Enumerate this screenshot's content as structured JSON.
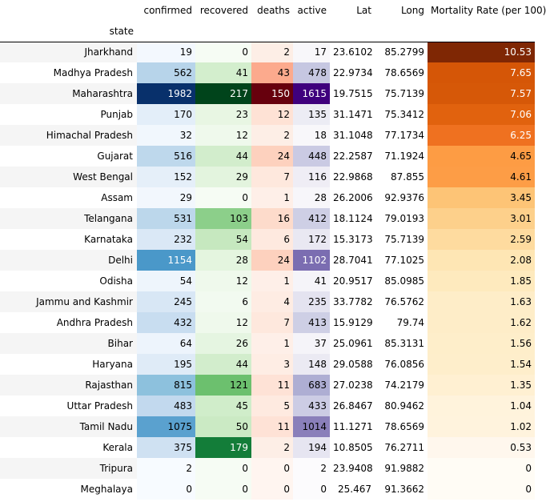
{
  "table": {
    "columns": [
      "confirmed",
      "recovered",
      "deaths",
      "active",
      "Lat",
      "Long",
      "Mortality Rate (per 100)"
    ],
    "index_name": "state",
    "rows": [
      {
        "state": "Jharkhand",
        "confirmed": "19",
        "recovered": "0",
        "deaths": "2",
        "active": "17",
        "lat": "23.6102",
        "long": "85.2799",
        "mortality": "10.53",
        "bg": [
          "#f3f8fe",
          "#f6fcf4",
          "#fdeee6",
          "#f8f7fa",
          "#ffffff",
          "#ffffff",
          "#7f2704"
        ],
        "fg": [
          "#000000",
          "#000000",
          "#000000",
          "#000000",
          "#000000",
          "#000000",
          "#ffffff"
        ]
      },
      {
        "state": "Madhya Pradesh",
        "confirmed": "562",
        "recovered": "41",
        "deaths": "43",
        "active": "478",
        "lat": "22.9734",
        "long": "78.6569",
        "mortality": "7.65",
        "bg": [
          "#b7d4ea",
          "#d3eecd",
          "#fcaa8d",
          "#c6c7e1",
          "#ffffff",
          "#ffffff",
          "#d55607"
        ],
        "fg": [
          "#000000",
          "#000000",
          "#000000",
          "#000000",
          "#000000",
          "#000000",
          "#ffffff"
        ]
      },
      {
        "state": "Maharashtra",
        "confirmed": "1982",
        "recovered": "217",
        "deaths": "150",
        "active": "1615",
        "lat": "19.7515",
        "long": "75.7139",
        "mortality": "7.57",
        "bg": [
          "#08306b",
          "#00441b",
          "#67000d",
          "#3f007d",
          "#ffffff",
          "#ffffff",
          "#d65808"
        ],
        "fg": [
          "#ffffff",
          "#ffffff",
          "#ffffff",
          "#ffffff",
          "#000000",
          "#000000",
          "#ffffff"
        ]
      },
      {
        "state": "Punjab",
        "confirmed": "170",
        "recovered": "23",
        "deaths": "12",
        "active": "135",
        "lat": "31.1471",
        "long": "75.3412",
        "mortality": "7.06",
        "bg": [
          "#e3eef9",
          "#e8f6e3",
          "#fee2d5",
          "#ececf4",
          "#ffffff",
          "#ffffff",
          "#e1620e"
        ],
        "fg": [
          "#000000",
          "#000000",
          "#000000",
          "#000000",
          "#000000",
          "#000000",
          "#ffffff"
        ]
      },
      {
        "state": "Himachal Pradesh",
        "confirmed": "32",
        "recovered": "12",
        "deaths": "2",
        "active": "18",
        "lat": "31.1048",
        "long": "77.1734",
        "mortality": "6.25",
        "bg": [
          "#f1f7fd",
          "#eff9ec",
          "#fdeee6",
          "#f8f7fa",
          "#ffffff",
          "#ffffff",
          "#ef7120"
        ],
        "fg": [
          "#000000",
          "#000000",
          "#000000",
          "#000000",
          "#000000",
          "#000000",
          "#ffffff"
        ]
      },
      {
        "state": "Gujarat",
        "confirmed": "516",
        "recovered": "44",
        "deaths": "24",
        "active": "448",
        "lat": "22.2587",
        "long": "71.1924",
        "mortality": "4.65",
        "bg": [
          "#bed8ec",
          "#d2edcc",
          "#fdd1be",
          "#cacae3",
          "#ffffff",
          "#ffffff",
          "#fd9c44"
        ],
        "fg": [
          "#000000",
          "#000000",
          "#000000",
          "#000000",
          "#000000",
          "#000000",
          "#000000"
        ]
      },
      {
        "state": "West Bengal",
        "confirmed": "152",
        "recovered": "29",
        "deaths": "7",
        "active": "116",
        "lat": "22.9868",
        "long": "87.855",
        "mortality": "4.61",
        "bg": [
          "#e5eff9",
          "#e3f4de",
          "#fee8dd",
          "#efedf5",
          "#ffffff",
          "#ffffff",
          "#fd9d46"
        ],
        "fg": [
          "#000000",
          "#000000",
          "#000000",
          "#000000",
          "#000000",
          "#000000",
          "#000000"
        ]
      },
      {
        "state": "Assam",
        "confirmed": "29",
        "recovered": "0",
        "deaths": "1",
        "active": "28",
        "lat": "26.2006",
        "long": "92.9376",
        "mortality": "3.45",
        "bg": [
          "#f2f7fd",
          "#f6fcf4",
          "#feefe8",
          "#f7f6fa",
          "#ffffff",
          "#ffffff",
          "#fdc476"
        ],
        "fg": [
          "#000000",
          "#000000",
          "#000000",
          "#000000",
          "#000000",
          "#000000",
          "#000000"
        ]
      },
      {
        "state": "Telangana",
        "confirmed": "531",
        "recovered": "103",
        "deaths": "16",
        "active": "412",
        "lat": "18.1124",
        "long": "79.0193",
        "mortality": "3.01",
        "bg": [
          "#bcd7eb",
          "#8ccf8a",
          "#fddbcb",
          "#cecfe5",
          "#ffffff",
          "#ffffff",
          "#fdd08b"
        ],
        "fg": [
          "#000000",
          "#000000",
          "#000000",
          "#000000",
          "#000000",
          "#000000",
          "#000000"
        ]
      },
      {
        "state": "Karnataka",
        "confirmed": "232",
        "recovered": "54",
        "deaths": "6",
        "active": "172",
        "lat": "15.3173",
        "long": "75.7139",
        "mortality": "2.59",
        "bg": [
          "#dae8f6",
          "#c6e8bf",
          "#fee9df",
          "#e9e8f2",
          "#ffffff",
          "#ffffff",
          "#fedb9f"
        ],
        "fg": [
          "#000000",
          "#000000",
          "#000000",
          "#000000",
          "#000000",
          "#000000",
          "#000000"
        ]
      },
      {
        "state": "Delhi",
        "confirmed": "1154",
        "recovered": "28",
        "deaths": "24",
        "active": "1102",
        "lat": "28.7041",
        "long": "77.1025",
        "mortality": "2.08",
        "bg": [
          "#4a98c9",
          "#e4f5df",
          "#fdd1be",
          "#7b6db1",
          "#ffffff",
          "#ffffff",
          "#fee6b4"
        ],
        "fg": [
          "#ffffff",
          "#000000",
          "#000000",
          "#ffffff",
          "#000000",
          "#000000",
          "#000000"
        ]
      },
      {
        "state": "Odisha",
        "confirmed": "54",
        "recovered": "12",
        "deaths": "1",
        "active": "41",
        "lat": "20.9517",
        "long": "85.0985",
        "mortality": "1.85",
        "bg": [
          "#eef5fc",
          "#eff9ec",
          "#feefe8",
          "#f5f4f9",
          "#ffffff",
          "#ffffff",
          "#feeabe"
        ],
        "fg": [
          "#000000",
          "#000000",
          "#000000",
          "#000000",
          "#000000",
          "#000000",
          "#000000"
        ]
      },
      {
        "state": "Jammu and Kashmir",
        "confirmed": "245",
        "recovered": "6",
        "deaths": "4",
        "active": "235",
        "lat": "33.7782",
        "long": "76.5762",
        "mortality": "1.63",
        "bg": [
          "#d8e7f5",
          "#f2faf0",
          "#feece3",
          "#e4e3f0",
          "#ffffff",
          "#ffffff",
          "#feedc8"
        ],
        "fg": [
          "#000000",
          "#000000",
          "#000000",
          "#000000",
          "#000000",
          "#000000",
          "#000000"
        ]
      },
      {
        "state": "Andhra Pradesh",
        "confirmed": "432",
        "recovered": "12",
        "deaths": "7",
        "active": "413",
        "lat": "15.9129",
        "long": "79.74",
        "mortality": "1.62",
        "bg": [
          "#c8ddf0",
          "#eff9ec",
          "#fee8dd",
          "#cecfe5",
          "#ffffff",
          "#ffffff",
          "#feedc8"
        ],
        "fg": [
          "#000000",
          "#000000",
          "#000000",
          "#000000",
          "#000000",
          "#000000",
          "#000000"
        ]
      },
      {
        "state": "Bihar",
        "confirmed": "64",
        "recovered": "26",
        "deaths": "1",
        "active": "37",
        "lat": "25.0961",
        "long": "85.3131",
        "mortality": "1.56",
        "bg": [
          "#edf4fc",
          "#e5f5e1",
          "#feefe8",
          "#f5f4f9",
          "#ffffff",
          "#ffffff",
          "#feeeca"
        ],
        "fg": [
          "#000000",
          "#000000",
          "#000000",
          "#000000",
          "#000000",
          "#000000",
          "#000000"
        ]
      },
      {
        "state": "Haryana",
        "confirmed": "195",
        "recovered": "44",
        "deaths": "3",
        "active": "148",
        "lat": "29.0588",
        "long": "76.0856",
        "mortality": "1.54",
        "bg": [
          "#dfebf7",
          "#d2edcc",
          "#feede4",
          "#ebeaf3",
          "#ffffff",
          "#ffffff",
          "#feeecb"
        ],
        "fg": [
          "#000000",
          "#000000",
          "#000000",
          "#000000",
          "#000000",
          "#000000",
          "#000000"
        ]
      },
      {
        "state": "Rajasthan",
        "confirmed": "815",
        "recovered": "121",
        "deaths": "11",
        "active": "683",
        "lat": "27.0238",
        "long": "74.2179",
        "mortality": "1.35",
        "bg": [
          "#8dc1dd",
          "#6cc06e",
          "#fee2d6",
          "#aeaed3",
          "#ffffff",
          "#ffffff",
          "#fff0d2"
        ],
        "fg": [
          "#000000",
          "#000000",
          "#000000",
          "#000000",
          "#000000",
          "#000000",
          "#000000"
        ]
      },
      {
        "state": "Uttar Pradesh",
        "confirmed": "483",
        "recovered": "45",
        "deaths": "5",
        "active": "433",
        "lat": "26.8467",
        "long": "80.9462",
        "mortality": "1.04",
        "bg": [
          "#c2d9ee",
          "#d0edca",
          "#feeae0",
          "#cccce4",
          "#ffffff",
          "#ffffff",
          "#fff3dc"
        ],
        "fg": [
          "#000000",
          "#000000",
          "#000000",
          "#000000",
          "#000000",
          "#000000",
          "#000000"
        ]
      },
      {
        "state": "Tamil Nadu",
        "confirmed": "1075",
        "recovered": "50",
        "deaths": "11",
        "active": "1014",
        "lat": "11.1271",
        "long": "78.6569",
        "mortality": "1.02",
        "bg": [
          "#5aa1cf",
          "#cbeac4",
          "#fee2d6",
          "#8a7fba",
          "#ffffff",
          "#ffffff",
          "#fff3dd"
        ],
        "fg": [
          "#000000",
          "#000000",
          "#000000",
          "#000000",
          "#000000",
          "#000000",
          "#000000"
        ]
      },
      {
        "state": "Kerala",
        "confirmed": "375",
        "recovered": "179",
        "deaths": "2",
        "active": "194",
        "lat": "10.8505",
        "long": "76.2711",
        "mortality": "0.53",
        "bg": [
          "#cfe1f2",
          "#137d39",
          "#fdeee6",
          "#e6e5f1",
          "#ffffff",
          "#ffffff",
          "#fff7ed"
        ],
        "fg": [
          "#000000",
          "#ffffff",
          "#000000",
          "#000000",
          "#000000",
          "#000000",
          "#000000"
        ]
      },
      {
        "state": "Tripura",
        "confirmed": "2",
        "recovered": "0",
        "deaths": "0",
        "active": "2",
        "lat": "23.9408",
        "long": "91.9882",
        "mortality": "0",
        "bg": [
          "#f7fbff",
          "#f6fcf4",
          "#fff5f0",
          "#fcfbfd",
          "#ffffff",
          "#ffffff",
          "#fffcf5"
        ],
        "fg": [
          "#000000",
          "#000000",
          "#000000",
          "#000000",
          "#000000",
          "#000000",
          "#000000"
        ]
      },
      {
        "state": "Meghalaya",
        "confirmed": "0",
        "recovered": "0",
        "deaths": "0",
        "active": "0",
        "lat": "25.467",
        "long": "91.3662",
        "mortality": "0",
        "bg": [
          "#f7fbff",
          "#f6fcf4",
          "#fff5f0",
          "#fcfbfd",
          "#ffffff",
          "#ffffff",
          "#fffcf5"
        ],
        "fg": [
          "#000000",
          "#000000",
          "#000000",
          "#000000",
          "#000000",
          "#000000",
          "#000000"
        ]
      }
    ]
  }
}
